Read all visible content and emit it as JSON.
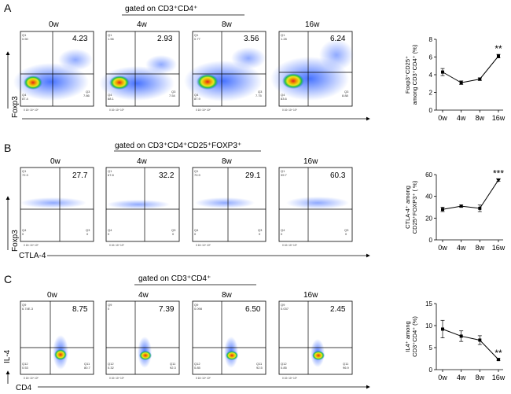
{
  "figure": {
    "timepoints": [
      "0w",
      "4w",
      "8w",
      "16w"
    ],
    "panels": [
      {
        "label": "A",
        "gate_text": "gated on CD3⁺CD4⁺",
        "y_marker": "Foxp3",
        "x_marker": "",
        "flow": [
          {
            "time": "0w",
            "main_value": "4.23",
            "q1": "0.50",
            "q3": "7.86",
            "q4": "87.4"
          },
          {
            "time": "4w",
            "main_value": "2.93",
            "q1": "1.56",
            "q3": "7.54",
            "q4": "88.1"
          },
          {
            "time": "8w",
            "main_value": "3.56",
            "q1": "0.77",
            "q3": "7.75",
            "q4": "87.9"
          },
          {
            "time": "16w",
            "main_value": "6.24",
            "q1": "1.28",
            "q3": "8.88",
            "q4": "83.6"
          }
        ],
        "chart_data": {
          "type": "line",
          "categories": [
            "0w",
            "4w",
            "8w",
            "16w"
          ],
          "series": [
            {
              "values": [
                4.3,
                3.1,
                3.5,
                6.1
              ],
              "errors": [
                0.4,
                0.2,
                0.15,
                0.2
              ]
            }
          ],
          "ylabel": "Foxp3⁺CD25⁺ among CD3⁺CD4⁺ (%)",
          "ylabel_lines": [
            "Foxp3⁺CD25⁺",
            "among CD3⁺CD4⁺ (%)"
          ],
          "yticks": [
            0,
            2,
            4,
            6,
            8
          ],
          "ylim": [
            0,
            8
          ],
          "annotation": "**"
        }
      },
      {
        "label": "B",
        "gate_text": "gated on CD3⁺CD4⁺CD25⁺FOXP3⁺",
        "y_marker": "Foxp3",
        "x_marker": "CTLA-4",
        "flow": [
          {
            "time": "0w",
            "main_value": "27.7",
            "q1": "72.3",
            "q3": "0",
            "q4": "0"
          },
          {
            "time": "4w",
            "main_value": "32.2",
            "q1": "67.8",
            "q3": "0",
            "q4": "0"
          },
          {
            "time": "8w",
            "main_value": "29.1",
            "q1": "70.9",
            "q3": "0",
            "q4": "0"
          },
          {
            "time": "16w",
            "main_value": "60.3",
            "q1": "39.7",
            "q3": "0",
            "q4": "0"
          }
        ],
        "chart_data": {
          "type": "line",
          "categories": [
            "0w",
            "4w",
            "8w",
            "16w"
          ],
          "series": [
            {
              "values": [
                28,
                31,
                29,
                55
              ],
              "errors": [
                2,
                1,
                3,
                1
              ]
            }
          ],
          "ylabel": "CTLA-4⁺ among CD25⁺FOXP3⁺ ( %)",
          "ylabel_lines": [
            "CTLA-4⁺ among",
            "CD25⁺FOXP3⁺ ( %)"
          ],
          "yticks": [
            0,
            20,
            40,
            60
          ],
          "ylim": [
            0,
            60
          ],
          "annotation": "***"
        }
      },
      {
        "label": "C",
        "gate_text": "gated on CD3⁺CD4⁺",
        "y_marker": "IL-4",
        "x_marker": "CD4",
        "flow": [
          {
            "time": "0w",
            "main_value": "8.75",
            "q1": "6.74E-3",
            "q3": "80.7",
            "q4": "0.53"
          },
          {
            "time": "4w",
            "main_value": "7.39",
            "q1": "0",
            "q3": "92.3",
            "q4": "0.32"
          },
          {
            "time": "8w",
            "main_value": "6.50",
            "q1": "0.098",
            "q3": "92.5",
            "q4": "0.85"
          },
          {
            "time": "16w",
            "main_value": "2.45",
            "q1": "0.037",
            "q3": "96.9",
            "q4": "0.85"
          }
        ],
        "chart_data": {
          "type": "line",
          "categories": [
            "0w",
            "4w",
            "8w",
            "16w"
          ],
          "series": [
            {
              "values": [
                9.2,
                7.6,
                6.7,
                2.3
              ],
              "errors": [
                2.0,
                1.2,
                1.0,
                0.2
              ]
            }
          ],
          "ylabel": "IL4⁺ among CD3⁺CD4⁺ (%)",
          "ylabel_lines": [
            "IL4⁺ among",
            "CD3⁺CD4⁺ (%)"
          ],
          "yticks": [
            0,
            5,
            10,
            15
          ],
          "ylim": [
            0,
            15
          ],
          "annotation": "**"
        }
      }
    ]
  }
}
